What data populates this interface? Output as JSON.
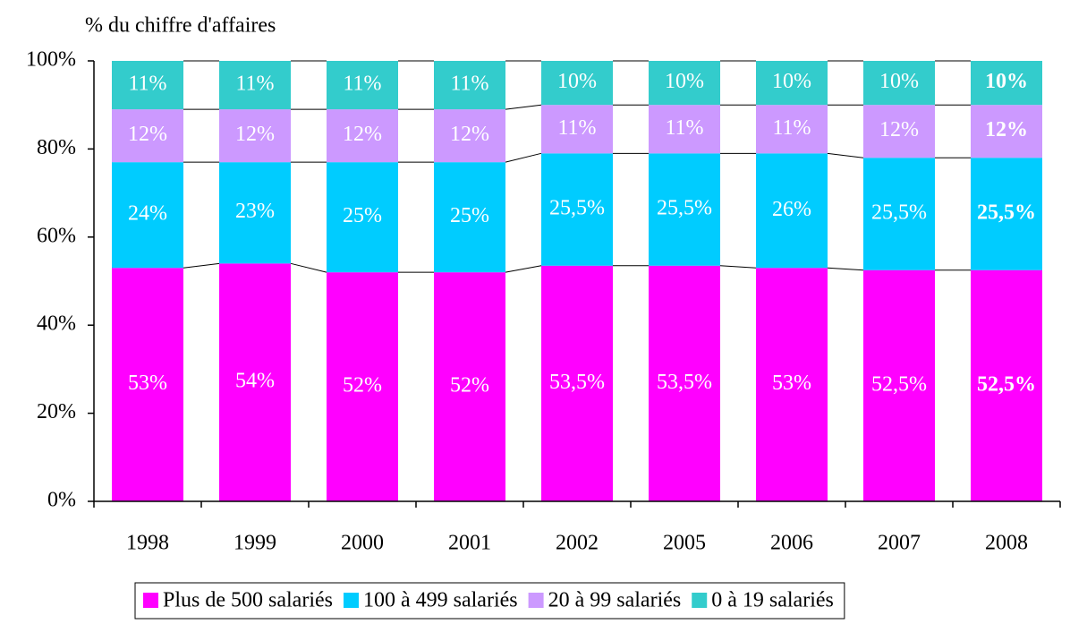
{
  "chart_data": {
    "type": "bar",
    "stacked": true,
    "y_axis_label": "% du chiffre d'affaires",
    "categories": [
      "1998",
      "1999",
      "2000",
      "2001",
      "2002",
      "2005",
      "2006",
      "2007",
      "2008"
    ],
    "series": [
      {
        "name": "Plus de 500 salariés",
        "color": "#ff00ff",
        "values": [
          53,
          54,
          52,
          52,
          53.5,
          53.5,
          53,
          52.5,
          52.5
        ],
        "value_labels": [
          "53%",
          "54%",
          "52%",
          "52%",
          "53,5%",
          "53,5%",
          "53%",
          "52,5%",
          "52,5%"
        ]
      },
      {
        "name": "100 à 499 salariés",
        "color": "#00ccff",
        "values": [
          24,
          23,
          25,
          25,
          25.5,
          25.5,
          26,
          25.5,
          25.5
        ],
        "value_labels": [
          "24%",
          "23%",
          "25%",
          "25%",
          "25,5%",
          "25,5%",
          "26%",
          "25,5%",
          "25,5%"
        ]
      },
      {
        "name": "20 à 99 salariés",
        "color": "#cc99ff",
        "values": [
          12,
          12,
          12,
          12,
          11,
          11,
          11,
          12,
          12
        ],
        "value_labels": [
          "12%",
          "12%",
          "12%",
          "12%",
          "11%",
          "11%",
          "11%",
          "12%",
          "12%"
        ]
      },
      {
        "name": "0 à 19 salariés",
        "color": "#33cccc",
        "values": [
          11,
          11,
          11,
          11,
          10,
          10,
          10,
          10,
          10
        ],
        "value_labels": [
          "11%",
          "11%",
          "11%",
          "11%",
          "10%",
          "10%",
          "10%",
          "10%",
          "10%"
        ]
      }
    ],
    "ylim": [
      0,
      100
    ],
    "yticks": [
      {
        "value": 0,
        "label": "0%"
      },
      {
        "value": 20,
        "label": "20%"
      },
      {
        "value": 40,
        "label": "40%"
      },
      {
        "value": 60,
        "label": "60%"
      },
      {
        "value": 80,
        "label": "80%"
      },
      {
        "value": 100,
        "label": "100%"
      }
    ],
    "legend": "bottom"
  }
}
